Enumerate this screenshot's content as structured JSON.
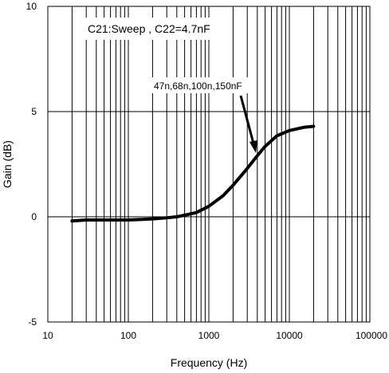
{
  "chart_data": {
    "type": "line",
    "title": "",
    "xlabel": "Frequency (Hz)",
    "ylabel": "Gain (dB)",
    "x_scale": "log",
    "xlim": [
      10,
      100000
    ],
    "ylim": [
      -5,
      10
    ],
    "x_ticks": [
      10,
      100,
      1000,
      10000,
      100000
    ],
    "x_tick_labels": [
      "10",
      "100",
      "1000",
      "10000",
      "100000"
    ],
    "y_ticks": [
      -5,
      0,
      5,
      10
    ],
    "y_tick_labels": [
      "-5",
      "0",
      "5",
      "10"
    ],
    "grid": true,
    "annotations": [
      {
        "text": "C21:Sweep , C22=4.7nF"
      },
      {
        "text": "47n,68n,100n,150nF"
      }
    ],
    "series": [
      {
        "x": [
          20,
          30,
          50,
          100,
          150,
          200,
          300,
          400,
          500,
          700,
          1000,
          1500,
          2000,
          3000,
          4000,
          5000,
          7000,
          10000,
          15000,
          20000
        ],
        "y": [
          -0.2,
          -0.15,
          -0.15,
          -0.15,
          -0.12,
          -0.1,
          -0.05,
          0.0,
          0.08,
          0.2,
          0.5,
          1.0,
          1.5,
          2.3,
          2.9,
          3.35,
          3.85,
          4.1,
          4.25,
          4.3
        ]
      }
    ],
    "colors": {
      "line": "#000000",
      "grid": "#000000",
      "background": "#ffffff"
    }
  }
}
